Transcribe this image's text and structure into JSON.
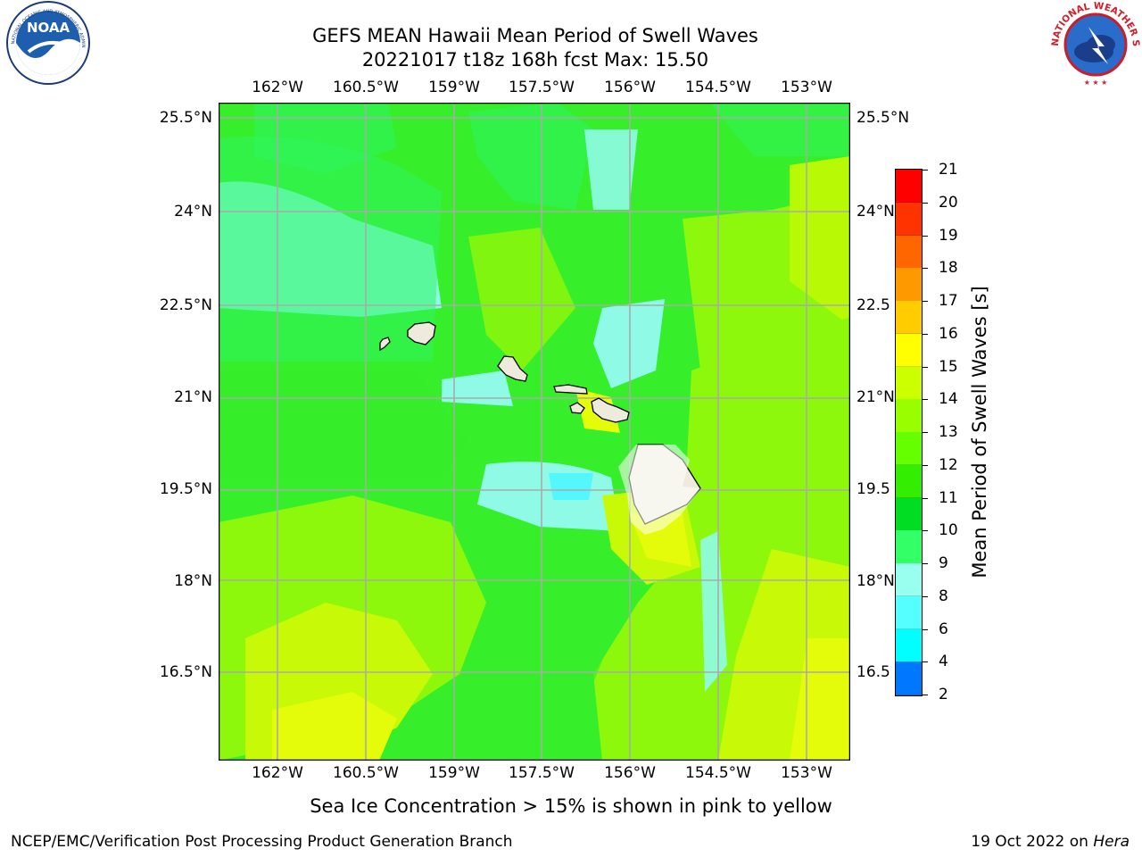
{
  "header": {
    "title_line1": "GEFS MEAN Hawaii Mean Period of Swell Waves",
    "title_line2": "20221017 t18z 168h fcst   Max: 15.50"
  },
  "logos": {
    "noaa_text": "NOAA",
    "noaa_ring": "NATIONAL OCEANIC AND ATMOSPHERIC ADMINISTRATION · U.S. DEPARTMENT OF COMMERCE",
    "nws_ring": "NATIONAL WEATHER SERVICE"
  },
  "map": {
    "lon_ticks": [
      "162°W",
      "160.5°W",
      "159°W",
      "157.5°W",
      "156°W",
      "154.5°W",
      "153°W"
    ],
    "lat_ticks": [
      "25.5°N",
      "24°N",
      "22.5°N",
      "21°N",
      "19.5°N",
      "18°N",
      "16.5°N"
    ],
    "lat_ticks_right": [
      "25.5°N",
      "24°N",
      "22.5",
      "21°N",
      "19.5",
      "18°N",
      "16.5"
    ]
  },
  "colorbar": {
    "title": "Mean Period of Swell Waves [s]",
    "labels": [
      "21",
      "20",
      "19",
      "18",
      "17",
      "16",
      "15",
      "14",
      "13",
      "12",
      "11",
      "10",
      "9",
      "8",
      "6",
      "4",
      "2"
    ],
    "colors": [
      "#ff0000",
      "#ff3300",
      "#ff6600",
      "#ff9900",
      "#ffcc00",
      "#ffff00",
      "#ccff00",
      "#99ff00",
      "#66ff00",
      "#33ee00",
      "#00dd22",
      "#33ff66",
      "#99ffee",
      "#55ffff",
      "#00ffff",
      "#0077ff",
      "#0000ff"
    ]
  },
  "caption": "Sea Ice Concentration > 15% is shown in pink to yellow",
  "footer": {
    "left": "NCEP/EMC/Verification Post Processing Product Generation Branch",
    "date": "19 Oct 2022 on ",
    "host": "Hera"
  }
}
